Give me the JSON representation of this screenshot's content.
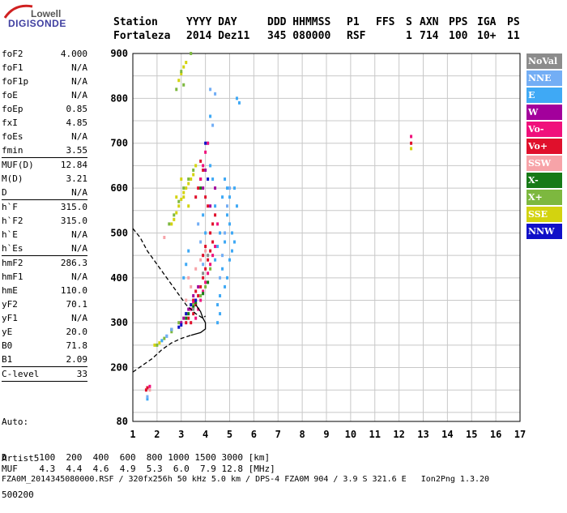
{
  "logo": {
    "top": "Lowell",
    "main": "DIGISONDE"
  },
  "header": {
    "row1": [
      "Station",
      "YYYY DAY",
      "DDD HHMMSS",
      "P1",
      "FFS",
      "S",
      "AXN",
      "PPS",
      "IGA",
      "PS"
    ],
    "row2": [
      "Fortaleza",
      "2014 Dez11",
      "345 080000",
      "RSF",
      "",
      "1",
      "714",
      "100",
      "10+",
      "11"
    ]
  },
  "parameters": [
    {
      "label": "foF2",
      "value": "4.000"
    },
    {
      "label": "foF1",
      "value": "N/A"
    },
    {
      "label": "foF1p",
      "value": "N/A"
    },
    {
      "label": "foE",
      "value": "N/A"
    },
    {
      "label": "foEp",
      "value": "0.85"
    },
    {
      "label": "fxI",
      "value": "4.85"
    },
    {
      "label": "foEs",
      "value": "N/A"
    },
    {
      "label": "fmin",
      "value": "3.55"
    },
    {
      "sep": true
    },
    {
      "label": "MUF(D)",
      "value": "12.84"
    },
    {
      "label": "M(D)",
      "value": "3.21"
    },
    {
      "label": "D",
      "value": "N/A"
    },
    {
      "sep": true
    },
    {
      "label": "h`F",
      "value": "315.0"
    },
    {
      "label": "h`F2",
      "value": "315.0"
    },
    {
      "label": "h`E",
      "value": "N/A"
    },
    {
      "label": "h`Es",
      "value": "N/A"
    },
    {
      "sep": true
    },
    {
      "label": "hmF2",
      "value": "286.3"
    },
    {
      "label": "hmF1",
      "value": "N/A"
    },
    {
      "label": "hmE",
      "value": "110.0"
    },
    {
      "label": "yF2",
      "value": "70.1"
    },
    {
      "label": "yF1",
      "value": "N/A"
    },
    {
      "label": "yE",
      "value": "20.0"
    },
    {
      "label": "B0",
      "value": "71.8"
    },
    {
      "label": "B1",
      "value": "2.09"
    },
    {
      "sep": true
    },
    {
      "label": "C-level",
      "value": "33"
    },
    {
      "sep": true
    }
  ],
  "auto_block": [
    "Auto:",
    "Artist5",
    "500200"
  ],
  "footer": {
    "d_row": "D      100  200  400  600  800 1000 1500 3000 [km]",
    "muf_row": "MUF    4.3  4.4  4.6  4.9  5.3  6.0  7.9 12.8 [MHz]",
    "file_row": "FZA0M_2014345080000.RSF / 320fx256h 50 kHz 5.0 km / DPS-4 FZA0M 904 / 3.9 S 321.6 E   Ion2Png 1.3.20"
  },
  "legend": [
    {
      "label": "NoVal",
      "color": "#8c8c8c"
    },
    {
      "label": "NNE",
      "color": "#73aef5"
    },
    {
      "label": "E",
      "color": "#3fa9f5"
    },
    {
      "label": "W",
      "color": "#a3009c"
    },
    {
      "label": "Vo-",
      "color": "#f0107c"
    },
    {
      "label": "Vo+",
      "color": "#e0102c"
    },
    {
      "label": "SSW",
      "color": "#f7a3a8"
    },
    {
      "label": "X-",
      "color": "#177a17"
    },
    {
      "label": "X+",
      "color": "#7db83f"
    },
    {
      "label": "SSE",
      "color": "#d3d30f"
    },
    {
      "label": "NNW",
      "color": "#1010c8"
    }
  ],
  "chart_data": {
    "type": "scatter",
    "xlabel": "",
    "ylabel": "",
    "xlim": [
      1,
      17
    ],
    "ylim": [
      80,
      900
    ],
    "xticks": [
      1,
      2,
      3,
      4,
      5,
      6,
      7,
      8,
      9,
      10,
      11,
      12,
      13,
      14,
      15,
      16,
      17
    ],
    "yticks": [
      80,
      200,
      300,
      400,
      500,
      600,
      700,
      800,
      900
    ],
    "grid": true,
    "legend_position": "right",
    "series": [
      {
        "name": "E",
        "color": "#3fa9f5",
        "points": [
          [
            4.5,
            300
          ],
          [
            4.6,
            360
          ],
          [
            4.7,
            420
          ],
          [
            4.8,
            480
          ],
          [
            4.9,
            540
          ],
          [
            5.0,
            520
          ],
          [
            5.1,
            500
          ],
          [
            5.2,
            480
          ],
          [
            5.1,
            460
          ],
          [
            5.0,
            440
          ],
          [
            4.9,
            400
          ],
          [
            4.8,
            380
          ],
          [
            5.3,
            560
          ],
          [
            5.2,
            600
          ],
          [
            4.6,
            320
          ],
          [
            4.5,
            340
          ],
          [
            5.3,
            800
          ],
          [
            5.4,
            790
          ],
          [
            1.6,
            130
          ],
          [
            2.2,
            260
          ],
          [
            2.4,
            270
          ],
          [
            4.4,
            560
          ],
          [
            4.3,
            620
          ],
          [
            4.2,
            650
          ],
          [
            4.1,
            700
          ],
          [
            4.2,
            760
          ],
          [
            3.2,
            430
          ],
          [
            3.3,
            460
          ],
          [
            3.1,
            400
          ],
          [
            4.0,
            500
          ],
          [
            3.9,
            540
          ],
          [
            4.7,
            580
          ],
          [
            4.8,
            620
          ],
          [
            4.9,
            600
          ],
          [
            5.0,
            580
          ],
          [
            4.6,
            500
          ],
          [
            4.5,
            470
          ],
          [
            4.4,
            440
          ]
        ]
      },
      {
        "name": "Vo+",
        "color": "#e0102c",
        "points": [
          [
            3.4,
            300
          ],
          [
            3.5,
            320
          ],
          [
            3.6,
            340
          ],
          [
            3.7,
            360
          ],
          [
            3.8,
            380
          ],
          [
            3.9,
            400
          ],
          [
            4.0,
            420
          ],
          [
            4.1,
            440
          ],
          [
            4.2,
            460
          ],
          [
            4.3,
            480
          ],
          [
            4.0,
            470
          ],
          [
            3.9,
            450
          ],
          [
            3.7,
            600
          ],
          [
            3.8,
            620
          ],
          [
            3.9,
            640
          ],
          [
            3.8,
            660
          ],
          [
            3.6,
            580
          ],
          [
            1.6,
            155
          ],
          [
            1.55,
            150
          ],
          [
            12.5,
            700
          ],
          [
            4.2,
            500
          ],
          [
            4.3,
            520
          ],
          [
            4.4,
            540
          ],
          [
            3.5,
            350
          ],
          [
            3.6,
            370
          ],
          [
            3.3,
            310
          ],
          [
            3.2,
            300
          ],
          [
            4.1,
            560
          ],
          [
            4.0,
            580
          ]
        ]
      },
      {
        "name": "Vo-",
        "color": "#f0107c",
        "points": [
          [
            3.6,
            310
          ],
          [
            3.7,
            330
          ],
          [
            3.8,
            350
          ],
          [
            3.9,
            370
          ],
          [
            4.0,
            390
          ],
          [
            4.1,
            410
          ],
          [
            4.2,
            430
          ],
          [
            4.3,
            450
          ],
          [
            3.8,
            620
          ],
          [
            3.9,
            650
          ],
          [
            4.0,
            680
          ],
          [
            4.1,
            700
          ],
          [
            12.5,
            715
          ],
          [
            1.7,
            158
          ],
          [
            3.4,
            330
          ],
          [
            3.5,
            345
          ],
          [
            4.4,
            470
          ],
          [
            4.5,
            520
          ]
        ]
      },
      {
        "name": "SSE",
        "color": "#d3d30f",
        "points": [
          [
            2.7,
            530
          ],
          [
            2.8,
            545
          ],
          [
            2.9,
            560
          ],
          [
            3.0,
            575
          ],
          [
            3.1,
            590
          ],
          [
            3.2,
            600
          ],
          [
            3.3,
            610
          ],
          [
            3.4,
            620
          ],
          [
            3.5,
            630
          ],
          [
            3.0,
            855
          ],
          [
            3.1,
            870
          ],
          [
            2.9,
            840
          ],
          [
            3.2,
            880
          ],
          [
            12.5,
            688
          ],
          [
            3.3,
            560
          ],
          [
            3.1,
            580
          ],
          [
            2.6,
            520
          ],
          [
            1.9,
            250
          ],
          [
            2.1,
            255
          ],
          [
            3.6,
            650
          ],
          [
            3.0,
            620
          ],
          [
            2.8,
            580
          ]
        ]
      },
      {
        "name": "X+",
        "color": "#7db83f",
        "points": [
          [
            2.5,
            520
          ],
          [
            2.7,
            540
          ],
          [
            2.9,
            570
          ],
          [
            3.1,
            600
          ],
          [
            3.3,
            620
          ],
          [
            3.5,
            640
          ],
          [
            2.0,
            250
          ],
          [
            2.3,
            265
          ],
          [
            2.6,
            280
          ],
          [
            2.9,
            300
          ],
          [
            3.2,
            320
          ],
          [
            3.5,
            340
          ],
          [
            3.0,
            860
          ],
          [
            3.1,
            830
          ],
          [
            2.8,
            820
          ],
          [
            3.4,
            900
          ],
          [
            3.8,
            360
          ],
          [
            4.0,
            380
          ],
          [
            4.2,
            420
          ]
        ]
      },
      {
        "name": "X-",
        "color": "#177a17",
        "points": [
          [
            3.3,
            320
          ],
          [
            3.6,
            345
          ],
          [
            3.9,
            365
          ],
          [
            4.1,
            390
          ],
          [
            3.2,
            310
          ],
          [
            3.5,
            335
          ],
          [
            2.6,
            285
          ],
          [
            3.8,
            600
          ]
        ]
      },
      {
        "name": "W",
        "color": "#a3009c",
        "points": [
          [
            3.1,
            310
          ],
          [
            3.3,
            330
          ],
          [
            3.9,
            600
          ],
          [
            4.0,
            640
          ],
          [
            3.0,
            300
          ],
          [
            3.5,
            360
          ],
          [
            3.7,
            380
          ],
          [
            4.2,
            560
          ],
          [
            4.4,
            600
          ]
        ]
      },
      {
        "name": "NNW",
        "color": "#1010c8",
        "points": [
          [
            3.2,
            320
          ],
          [
            3.4,
            340
          ],
          [
            4.0,
            700
          ],
          [
            3.0,
            295
          ],
          [
            2.9,
            290
          ],
          [
            3.6,
            350
          ],
          [
            4.1,
            620
          ]
        ]
      },
      {
        "name": "NNE",
        "color": "#73aef5",
        "points": [
          [
            4.6,
            400
          ],
          [
            4.7,
            450
          ],
          [
            4.8,
            500
          ],
          [
            4.9,
            560
          ],
          [
            5.0,
            600
          ],
          [
            3.9,
            430
          ],
          [
            3.8,
            480
          ],
          [
            3.7,
            520
          ],
          [
            2.4,
            270
          ],
          [
            2.6,
            285
          ],
          [
            4.3,
            740
          ],
          [
            4.4,
            810
          ],
          [
            4.2,
            820
          ],
          [
            1.6,
            135
          ]
        ]
      },
      {
        "name": "SSW",
        "color": "#f7a3a8",
        "points": [
          [
            2.3,
            490
          ],
          [
            3.4,
            380
          ],
          [
            3.6,
            420
          ],
          [
            3.8,
            440
          ],
          [
            4.0,
            460
          ],
          [
            3.2,
            350
          ],
          [
            3.3,
            400
          ],
          [
            1.7,
            150
          ]
        ]
      },
      {
        "name": "NoVal",
        "color": "#8c8c8c",
        "points": [
          [
            3.5,
            330
          ],
          [
            3.9,
            410
          ],
          [
            4.1,
            450
          ]
        ]
      }
    ],
    "profile_curves": [
      {
        "style": "dashed",
        "points": [
          [
            1.0,
            510
          ],
          [
            1.3,
            490
          ],
          [
            1.6,
            460
          ],
          [
            2.0,
            430
          ],
          [
            2.4,
            400
          ],
          [
            2.8,
            370
          ],
          [
            3.2,
            340
          ],
          [
            3.6,
            320
          ],
          [
            3.9,
            310
          ],
          [
            4.0,
            315
          ]
        ]
      },
      {
        "style": "dashed",
        "points": [
          [
            1.0,
            190
          ],
          [
            1.4,
            205
          ],
          [
            1.8,
            220
          ],
          [
            2.2,
            240
          ],
          [
            2.6,
            255
          ],
          [
            3.0,
            265
          ],
          [
            3.4,
            272
          ]
        ]
      },
      {
        "style": "solid",
        "points": [
          [
            3.4,
            272
          ],
          [
            3.8,
            278
          ],
          [
            4.0,
            286
          ],
          [
            4.0,
            300
          ],
          [
            3.9,
            310
          ],
          [
            3.8,
            325
          ],
          [
            3.6,
            340
          ]
        ]
      }
    ]
  }
}
